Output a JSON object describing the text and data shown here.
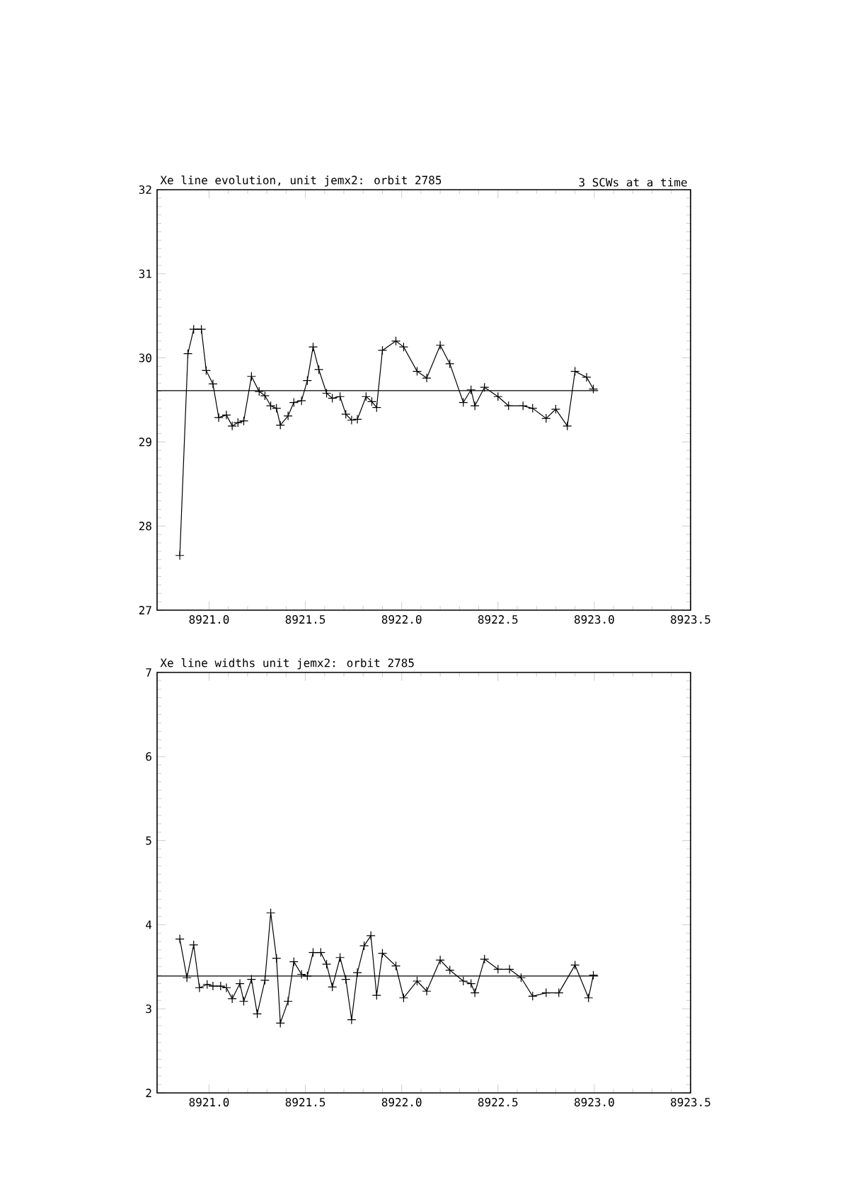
{
  "chart_data": [
    {
      "type": "line",
      "title": "Xe line evolution, unit jemx2: orbit 2785",
      "subtitle": "3 SCWs at a time",
      "xlim": [
        8920.73,
        8923.5
      ],
      "ylim": [
        27,
        32
      ],
      "xticks": [
        {
          "value": 8921.0,
          "label": "8921.0"
        },
        {
          "value": 8921.5,
          "label": "8921.5"
        },
        {
          "value": 8922.0,
          "label": "8922.0"
        },
        {
          "value": 8922.5,
          "label": "8922.5"
        },
        {
          "value": 8923.0,
          "label": "8923.0"
        },
        {
          "value": 8923.5,
          "label": "8923.5"
        }
      ],
      "yticks": [
        27,
        28,
        29,
        30,
        31,
        32
      ],
      "marker": "cross",
      "series": [
        {
          "color": "#000000",
          "x": [
            8920.848,
            8920.89,
            8920.92,
            8920.96,
            8920.985,
            8921.02,
            8921.05,
            8921.09,
            8921.12,
            8921.15,
            8921.18,
            8921.22,
            8921.26,
            8921.29,
            8921.32,
            8921.35,
            8921.37,
            8921.41,
            8921.44,
            8921.48,
            8921.51,
            8921.54,
            8921.57,
            8921.61,
            8921.64,
            8921.68,
            8921.71,
            8921.74,
            8921.77,
            8921.815,
            8921.845,
            8921.87,
            8921.9,
            8921.97,
            8922.01,
            8922.08,
            8922.13,
            8922.2,
            8922.25,
            8922.32,
            8922.36,
            8922.38,
            8922.43,
            8922.5,
            8922.555,
            8922.63,
            8922.68,
            8922.75,
            8922.8,
            8922.86,
            8922.9,
            8922.96,
            8922.995
          ],
          "values": [
            27.65,
            30.05,
            30.34,
            30.34,
            29.85,
            29.69,
            29.29,
            29.32,
            29.19,
            29.23,
            29.25,
            29.78,
            29.6,
            29.55,
            29.43,
            29.4,
            29.2,
            29.31,
            29.47,
            29.49,
            29.73,
            30.13,
            29.86,
            29.58,
            29.52,
            29.54,
            29.33,
            29.26,
            29.27,
            29.54,
            29.48,
            29.41,
            30.09,
            30.2,
            30.13,
            29.84,
            29.76,
            30.15,
            29.93,
            29.47,
            29.62,
            29.43,
            29.65,
            29.54,
            29.43,
            29.43,
            29.4,
            29.28,
            29.39,
            29.19,
            29.84,
            29.77,
            29.63
          ]
        },
        {
          "type": "line",
          "marker": "none",
          "color": "#000000",
          "x": [
            8920.73,
            8923.02
          ],
          "values": [
            29.61,
            29.61
          ]
        }
      ]
    },
    {
      "type": "line",
      "title": "Xe line widths unit jemx2: orbit 2785",
      "xlim": [
        8920.73,
        8923.5
      ],
      "ylim": [
        2,
        7
      ],
      "xticks": [
        {
          "value": 8921.0,
          "label": "8921.0"
        },
        {
          "value": 8921.5,
          "label": "8921.5"
        },
        {
          "value": 8922.0,
          "label": "8922.0"
        },
        {
          "value": 8922.5,
          "label": "8922.5"
        },
        {
          "value": 8923.0,
          "label": "8923.0"
        },
        {
          "value": 8923.5,
          "label": "8923.5"
        }
      ],
      "yticks": [
        2,
        3,
        4,
        5,
        6,
        7
      ],
      "marker": "cross",
      "series": [
        {
          "color": "#000000",
          "x": [
            8920.848,
            8920.885,
            8920.92,
            8920.95,
            8920.99,
            8921.02,
            8921.06,
            8921.09,
            8921.12,
            8921.16,
            8921.18,
            8921.22,
            8921.25,
            8921.29,
            8921.32,
            8921.35,
            8921.37,
            8921.41,
            8921.44,
            8921.48,
            8921.51,
            8921.54,
            8921.58,
            8921.61,
            8921.64,
            8921.68,
            8921.71,
            8921.74,
            8921.77,
            8921.805,
            8921.84,
            8921.87,
            8921.9,
            8921.97,
            8922.01,
            8922.08,
            8922.13,
            8922.2,
            8922.25,
            8922.32,
            8922.36,
            8922.38,
            8922.43,
            8922.5,
            8922.56,
            8922.62,
            8922.68,
            8922.75,
            8922.816,
            8922.9,
            8922.97,
            8922.995
          ],
          "values": [
            3.83,
            3.37,
            3.76,
            3.25,
            3.29,
            3.27,
            3.27,
            3.25,
            3.12,
            3.3,
            3.09,
            3.35,
            2.94,
            3.34,
            4.14,
            3.6,
            2.83,
            3.09,
            3.56,
            3.41,
            3.39,
            3.67,
            3.67,
            3.53,
            3.26,
            3.61,
            3.35,
            2.87,
            3.43,
            3.75,
            3.87,
            3.16,
            3.66,
            3.51,
            3.13,
            3.33,
            3.21,
            3.58,
            3.46,
            3.33,
            3.3,
            3.19,
            3.59,
            3.47,
            3.47,
            3.37,
            3.15,
            3.19,
            3.19,
            3.52,
            3.13,
            3.4
          ]
        },
        {
          "type": "line",
          "marker": "none",
          "color": "#000000",
          "x": [
            8920.73,
            8923.02
          ],
          "values": [
            3.39,
            3.39
          ]
        }
      ]
    }
  ]
}
